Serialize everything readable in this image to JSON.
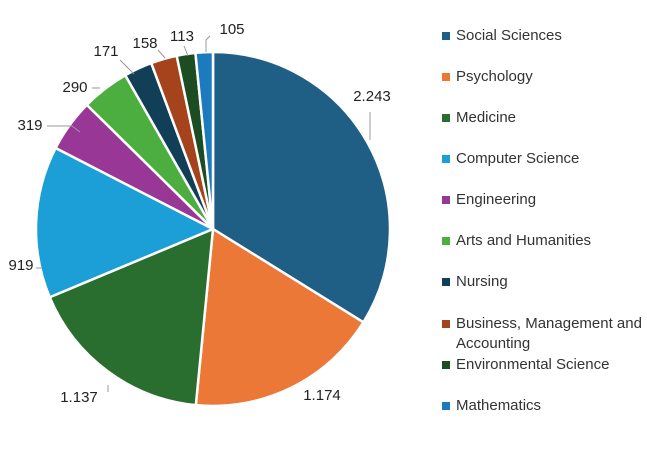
{
  "chart_data": {
    "type": "pie",
    "categories": [
      "Social Sciences",
      "Psychology",
      "Medicine",
      "Computer Science",
      "Engineering",
      "Arts and Humanities",
      "Nursing",
      "Business, Management and Accounting",
      "Environmental Science",
      "Mathematics"
    ],
    "values": [
      2243,
      1174,
      1137,
      919,
      319,
      290,
      171,
      158,
      113,
      105
    ],
    "value_labels": [
      "2.243",
      "1.174",
      "1.137",
      "919",
      "319",
      "290",
      "171",
      "158",
      "113",
      "105"
    ],
    "colors": [
      "#1f5f85",
      "#ec7837",
      "#2a6e2f",
      "#1b9fd6",
      "#983796",
      "#4cae3e",
      "#123f58",
      "#a4431c",
      "#1c4d22",
      "#1b7bbd"
    ],
    "legend_position": "right",
    "start_angle_deg": 0,
    "direction": "clockwise"
  }
}
